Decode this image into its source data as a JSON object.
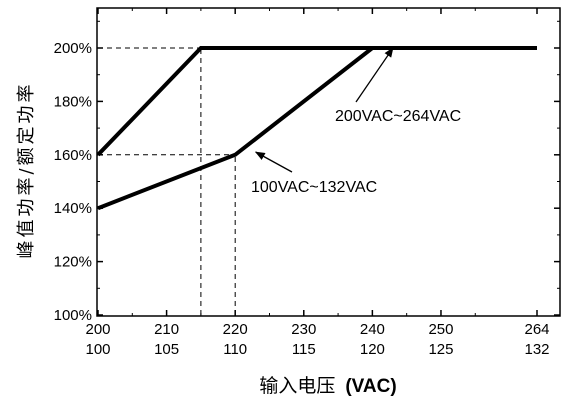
{
  "chart_data": {
    "type": "line",
    "xlabel": "输入电压",
    "xlabel_unit": "(VAC)",
    "ylabel": "峰值功率/额定功率",
    "x_ticks_top": [
      "200",
      "210",
      "220",
      "230",
      "240",
      "250",
      "264"
    ],
    "x_ticks_bottom": [
      "100",
      "105",
      "110",
      "115",
      "120",
      "125",
      "132"
    ],
    "y_ticks": [
      "100%",
      "120%",
      "140%",
      "160%",
      "180%",
      "200%"
    ],
    "ylim": [
      100,
      212
    ],
    "series": [
      {
        "name": "200VAC~264VAC",
        "x": [
          200,
          215,
          264
        ],
        "y": [
          160,
          200,
          200
        ]
      },
      {
        "name": "100VAC~132VAC",
        "x": [
          200,
          220,
          240,
          264
        ],
        "y": [
          140,
          160,
          200,
          200
        ]
      }
    ],
    "reference_lines": [
      {
        "x": [
          200,
          215
        ],
        "y": [
          200,
          200
        ]
      },
      {
        "x": [
          215,
          215
        ],
        "y": [
          100,
          200
        ]
      },
      {
        "x": [
          200,
          220
        ],
        "y": [
          160,
          160
        ]
      },
      {
        "x": [
          220,
          220
        ],
        "y": [
          100,
          160
        ]
      }
    ],
    "annotations": [
      {
        "text": "200VAC~264VAC",
        "target_x": 243,
        "target_y": 200
      },
      {
        "text": "100VAC~132VAC",
        "target_x": 223,
        "target_y": 161
      }
    ],
    "grid": false
  }
}
